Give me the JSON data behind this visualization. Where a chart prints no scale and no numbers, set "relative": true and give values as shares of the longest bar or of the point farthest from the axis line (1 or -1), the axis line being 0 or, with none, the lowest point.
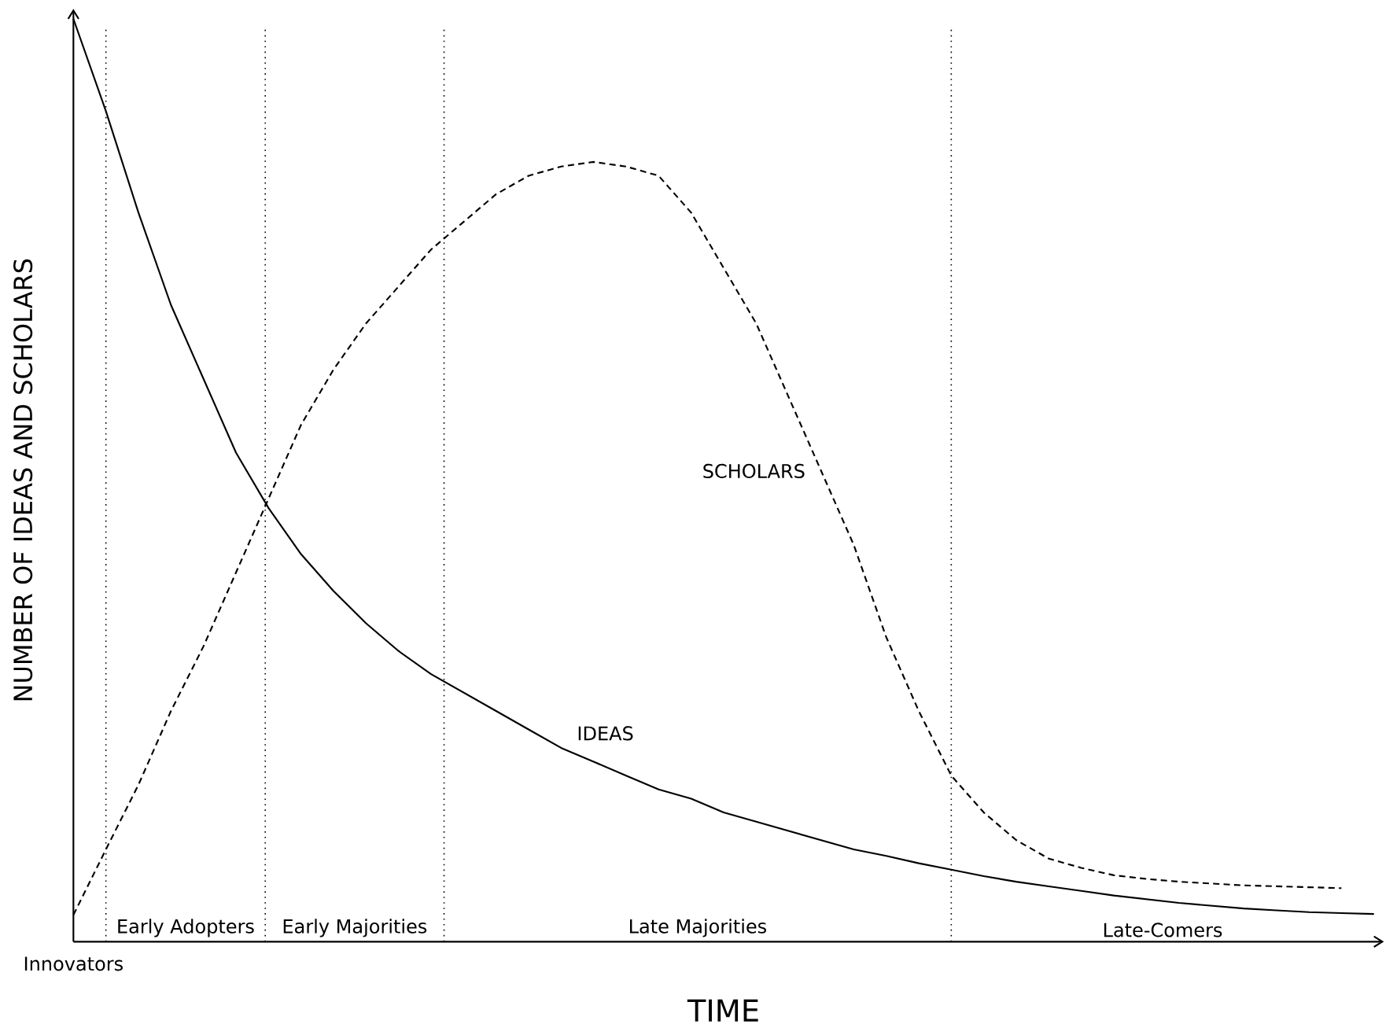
{
  "chart_data": {
    "type": "line",
    "relative": true,
    "xlabel": "TIME",
    "ylabel": "NUMBER OF IDEAS AND SCHOLARS",
    "categories": [
      null,
      null,
      null,
      null,
      null,
      null,
      null,
      null,
      null,
      null,
      null,
      null,
      null,
      null,
      null,
      null,
      null,
      null,
      null,
      null,
      null,
      null,
      null,
      null,
      null,
      null,
      null,
      null,
      null,
      null,
      null,
      null,
      null,
      null,
      null,
      null,
      null,
      null,
      null,
      null,
      null
    ],
    "series": [
      {
        "name": "IDEAS",
        "color": "#000000",
        "line_style": "solid",
        "values": [
          1.0,
          0.9,
          0.79,
          0.69,
          0.61,
          0.53,
          0.47,
          0.42,
          0.38,
          0.345,
          0.315,
          0.29,
          0.27,
          0.25,
          0.23,
          0.21,
          0.195,
          0.18,
          0.165,
          0.155,
          0.14,
          0.13,
          0.12,
          0.11,
          0.1,
          0.093,
          0.085,
          0.078,
          0.071,
          0.065,
          0.06,
          0.055,
          0.05,
          0.046,
          0.042,
          0.039,
          0.036,
          0.034,
          0.032,
          0.031,
          0.03
        ]
      },
      {
        "name": "SCHOLARS",
        "color": "#000000",
        "line_style": "dashed",
        "values": [
          0.029,
          0.1,
          0.17,
          0.25,
          0.32,
          0.4,
          0.48,
          0.56,
          0.62,
          0.67,
          0.71,
          0.75,
          0.78,
          0.81,
          0.83,
          0.84,
          0.845,
          0.84,
          0.83,
          0.79,
          0.73,
          0.67,
          0.59,
          0.51,
          0.43,
          0.33,
          0.25,
          0.18,
          0.14,
          0.11,
          0.09,
          0.08,
          0.072,
          0.068,
          0.065,
          0.063,
          0.061,
          0.06,
          0.059,
          0.058,
          null
        ]
      }
    ],
    "annotations": [
      "Innovators",
      "Early Adopters",
      "Early Majorities",
      "Late Majorities",
      "Late-Comers"
    ]
  }
}
